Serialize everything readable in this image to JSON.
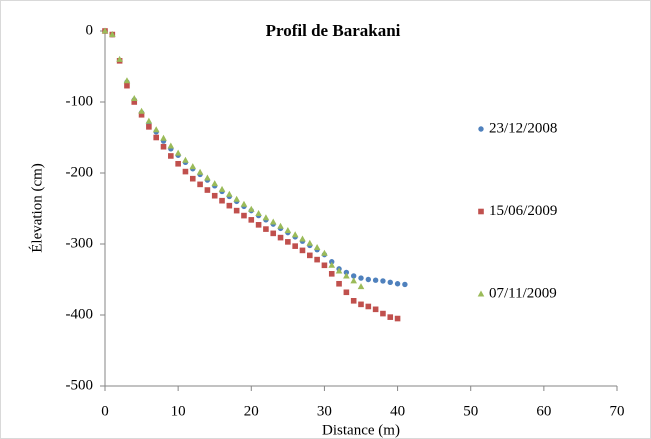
{
  "chart_data": {
    "type": "scatter",
    "title": "Profil de Barakani",
    "x_label": "Distance (m)",
    "y_label": "Élevation (cm)",
    "xlim": [
      0,
      70
    ],
    "xticks": [
      0,
      10,
      20,
      30,
      40,
      50,
      60,
      70
    ],
    "ylim": [
      -500,
      0
    ],
    "yticks": [
      -500,
      -400,
      -300,
      -200,
      -100,
      0
    ],
    "grid": false,
    "legend": "right",
    "series": [
      {
        "name": "23/12/2008",
        "color": "#4f81bd",
        "marker": "circle",
        "x": [
          0,
          1,
          2,
          3,
          4,
          5,
          6,
          7,
          8,
          9,
          10,
          11,
          12,
          13,
          14,
          15,
          16,
          17,
          18,
          19,
          20,
          21,
          22,
          23,
          24,
          25,
          26,
          27,
          28,
          29,
          30,
          31,
          32,
          33,
          34,
          35,
          36,
          37,
          38,
          39,
          40,
          41
        ],
        "values": [
          0,
          -5,
          -42,
          -72,
          -97,
          -115,
          -130,
          -142,
          -155,
          -166,
          -175,
          -185,
          -194,
          -202,
          -210,
          -218,
          -226,
          -233,
          -240,
          -247,
          -253,
          -260,
          -266,
          -272,
          -278,
          -284,
          -290,
          -296,
          -302,
          -308,
          -315,
          -325,
          -335,
          -340,
          -345,
          -348,
          -350,
          -351,
          -352,
          -354,
          -356,
          -357
        ]
      },
      {
        "name": "15/06/2009",
        "color": "#c0504d",
        "marker": "square",
        "x": [
          0,
          1,
          2,
          3,
          4,
          5,
          6,
          7,
          8,
          9,
          10,
          11,
          12,
          13,
          14,
          15,
          16,
          17,
          18,
          19,
          20,
          21,
          22,
          23,
          24,
          25,
          26,
          27,
          28,
          29,
          30,
          31,
          32,
          33,
          34,
          35,
          36,
          37,
          38,
          39,
          40
        ],
        "values": [
          0,
          -5,
          -42,
          -77,
          -100,
          -118,
          -135,
          -150,
          -163,
          -176,
          -187,
          -198,
          -208,
          -216,
          -224,
          -232,
          -239,
          -246,
          -253,
          -260,
          -266,
          -273,
          -279,
          -285,
          -291,
          -297,
          -303,
          -309,
          -316,
          -322,
          -330,
          -342,
          -356,
          -368,
          -380,
          -385,
          -388,
          -392,
          -398,
          -403,
          -405
        ]
      },
      {
        "name": "07/11/2009",
        "color": "#9bbb59",
        "marker": "triangle",
        "x": [
          0,
          1,
          2,
          3,
          4,
          5,
          6,
          7,
          8,
          9,
          10,
          11,
          12,
          13,
          14,
          15,
          16,
          17,
          18,
          19,
          20,
          21,
          22,
          23,
          24,
          25,
          26,
          27,
          28,
          29,
          30,
          31,
          32,
          33,
          34,
          35
        ],
        "values": [
          0,
          -5,
          -40,
          -70,
          -95,
          -113,
          -127,
          -139,
          -151,
          -162,
          -172,
          -182,
          -191,
          -199,
          -207,
          -215,
          -223,
          -230,
          -237,
          -244,
          -251,
          -257,
          -263,
          -269,
          -275,
          -281,
          -287,
          -293,
          -299,
          -305,
          -313,
          -330,
          -338,
          -345,
          -352,
          -360
        ]
      }
    ]
  }
}
